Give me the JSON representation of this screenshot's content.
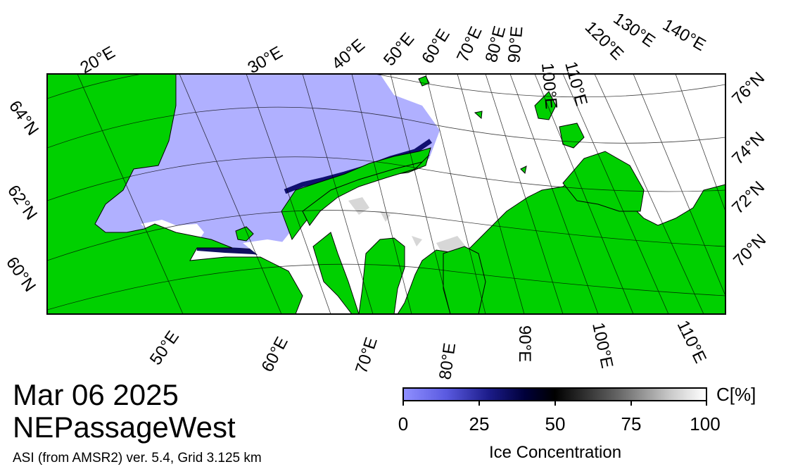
{
  "title": {
    "date": "Mar 06 2025",
    "region": "NEPassageWest",
    "product": "ASI (from AMSR2) ver. 5.4,  Grid 3.125 km"
  },
  "colorbar": {
    "unit": "C[%]",
    "title": "Ice Concentration",
    "ticks": [
      "0",
      "25",
      "50",
      "75",
      "100"
    ],
    "colors": {
      "open_water": "#b0b0ff",
      "low_ice": "#5a5ae0",
      "mid_ice": "#000000",
      "full_ice": "#ffffff"
    }
  },
  "map": {
    "land_color": "#00d000",
    "water_color": "#b0b0ff",
    "ice_color": "#ffffff",
    "top_lon_labels": [
      "20°E",
      "30°E",
      "40°E",
      "50°E",
      "60°E",
      "70°E",
      "80°E",
      "90°E",
      "100°E",
      "110°E",
      "120°E",
      "130°E",
      "140°E"
    ],
    "bottom_lon_labels": [
      "50°E",
      "60°E",
      "70°E",
      "80°E",
      "90°E",
      "100°E",
      "110°E"
    ],
    "left_lat_labels": [
      "64°N",
      "62°N",
      "60°N"
    ],
    "right_lat_labels": [
      "76°N",
      "74°N",
      "72°N",
      "70°N"
    ]
  }
}
